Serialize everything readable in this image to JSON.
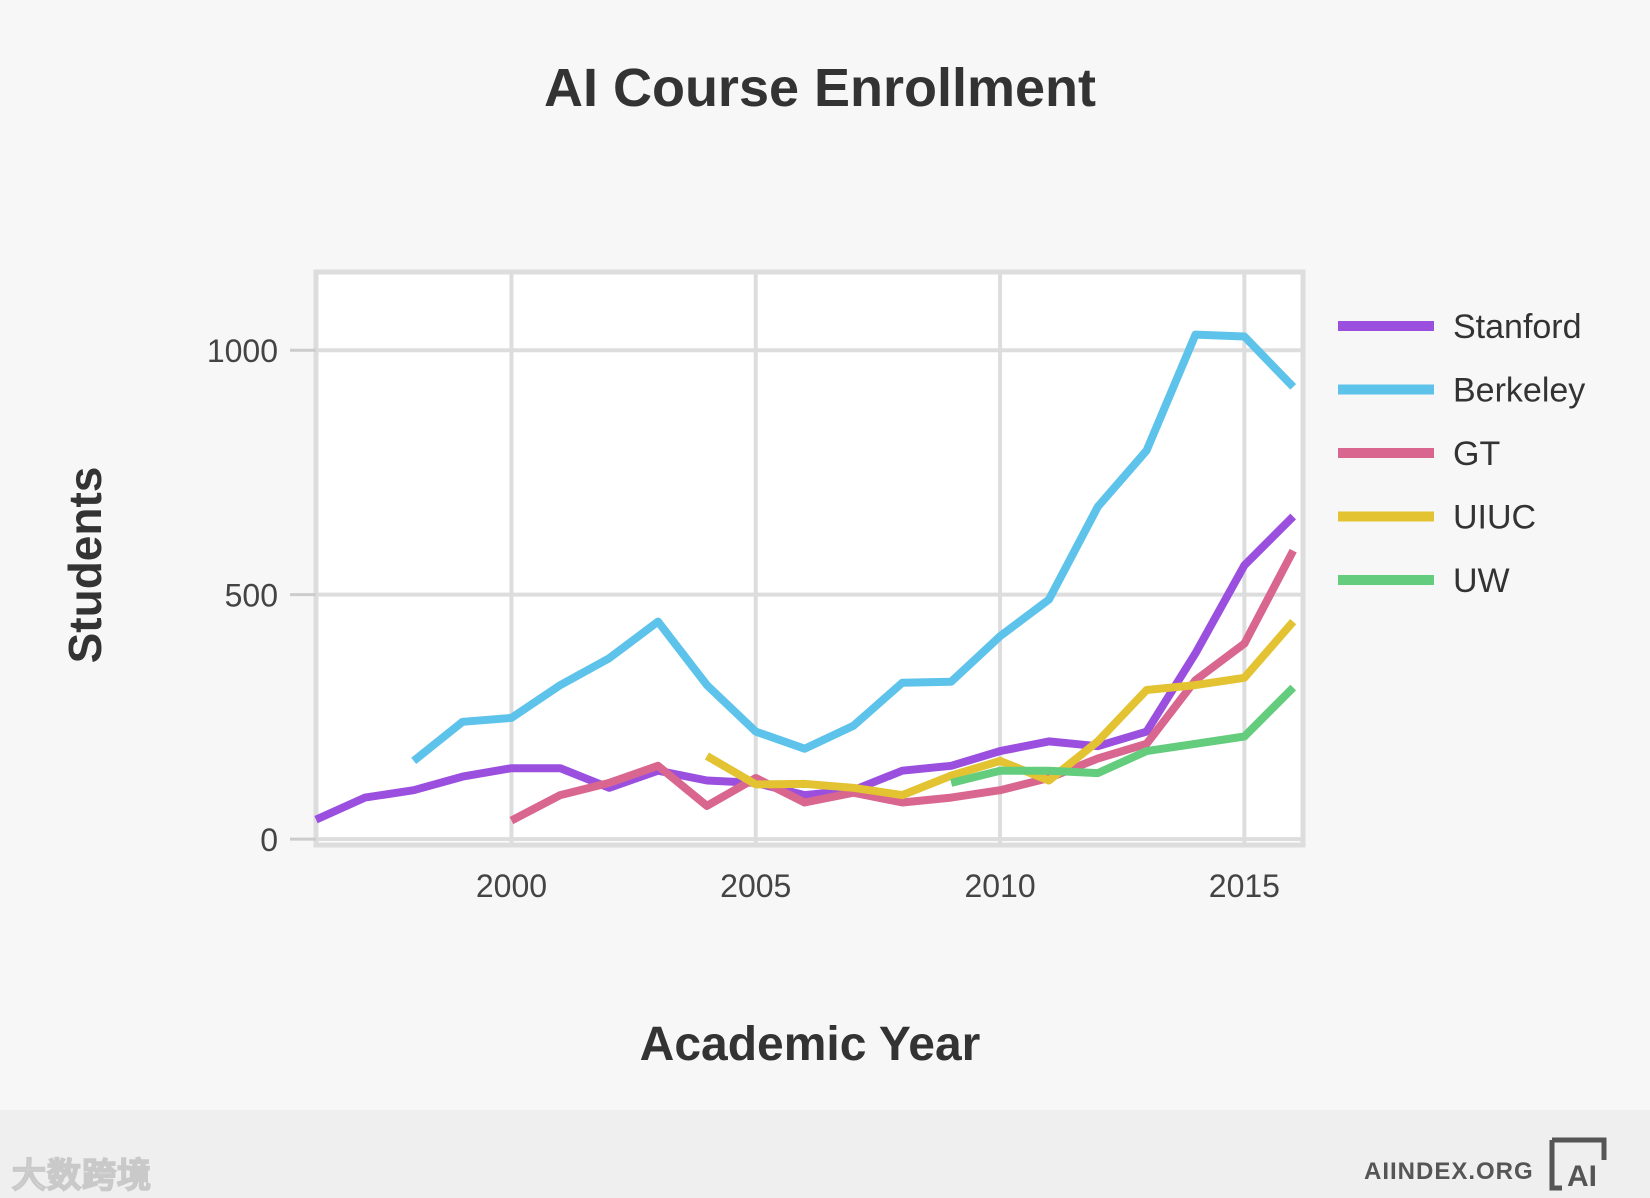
{
  "chart_data": {
    "type": "line",
    "title": "AI Course Enrollment",
    "xlabel": "Academic Year",
    "ylabel": "Students",
    "xlim": [
      1996,
      2016.2
    ],
    "ylim": [
      -12,
      1160
    ],
    "x_ticks": [
      2000,
      2005,
      2010,
      2015
    ],
    "y_ticks": [
      0,
      500,
      1000
    ],
    "grid": true,
    "legend_position": "right",
    "series": [
      {
        "name": "Stanford",
        "color": "#9b4fdf",
        "x": [
          1996,
          1997,
          1998,
          1999,
          2000,
          2001,
          2002,
          2003,
          2004,
          2005,
          2006,
          2007,
          2008,
          2009,
          2010,
          2011,
          2012,
          2013,
          2014,
          2015,
          2016
        ],
        "y": [
          40,
          85,
          100,
          128,
          145,
          145,
          105,
          140,
          120,
          115,
          90,
          100,
          140,
          150,
          180,
          200,
          190,
          220,
          380,
          560,
          660
        ]
      },
      {
        "name": "Berkeley",
        "color": "#5dc3ea",
        "x": [
          1998,
          1999,
          2000,
          2001,
          2002,
          2003,
          2004,
          2005,
          2006,
          2007,
          2008,
          2009,
          2010,
          2011,
          2012,
          2013,
          2014,
          2015,
          2016
        ],
        "y": [
          160,
          240,
          248,
          315,
          370,
          445,
          315,
          220,
          185,
          232,
          320,
          322,
          415,
          490,
          680,
          795,
          1032,
          1028,
          925
        ]
      },
      {
        "name": "GT",
        "color": "#d9668f",
        "x": [
          2000,
          2001,
          2002,
          2003,
          2004,
          2005,
          2006,
          2007,
          2008,
          2009,
          2010,
          2011,
          2012,
          2013,
          2014,
          2015,
          2016
        ],
        "y": [
          38,
          90,
          115,
          150,
          68,
          125,
          75,
          95,
          75,
          85,
          100,
          125,
          165,
          195,
          325,
          400,
          590
        ]
      },
      {
        "name": "UIUC",
        "color": "#e3c332",
        "x": [
          2004,
          2005,
          2006,
          2007,
          2008,
          2009,
          2010,
          2011,
          2012,
          2013,
          2014,
          2015,
          2016
        ],
        "y": [
          170,
          112,
          113,
          105,
          90,
          130,
          160,
          120,
          200,
          305,
          315,
          330,
          445
        ]
      },
      {
        "name": "UW",
        "color": "#63cd7d",
        "x": [
          2009,
          2010,
          2011,
          2012,
          2013,
          2014,
          2015,
          2016
        ],
        "y": [
          115,
          140,
          140,
          135,
          180,
          195,
          210,
          310
        ]
      }
    ]
  },
  "footer": {
    "watermark_text": "大数跨境",
    "site": "AIINDEX.ORG",
    "logo_text": "AI"
  }
}
